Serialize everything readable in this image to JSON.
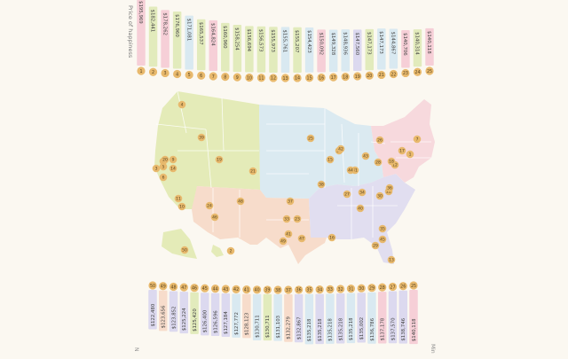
{
  "chart_data": {
    "type": "infographic-map",
    "top_axis_label": "Price of happiness",
    "bottom_axis_label_left": "N",
    "bottom_axis_label_right": "Min",
    "region_colors": {
      "west": "#e4ebb8",
      "southwest": "#f7dccb",
      "midwest": "#dbeaf1",
      "south": "#e1def0",
      "northeast": "#f7d9dd"
    },
    "badge_color": "#e8b96d",
    "top_series": [
      {
        "rank": 1,
        "price": "$195,969",
        "color": "#f6cfd7"
      },
      {
        "rank": 2,
        "price": "$182,441",
        "color": "#e2ebbc"
      },
      {
        "rank": 3,
        "price": "$178,262",
        "color": "#f6cfd7"
      },
      {
        "rank": 4,
        "price": "$176,960",
        "color": "#e2ebbc"
      },
      {
        "rank": 5,
        "price": "$171,081",
        "color": "#d9e9f1"
      },
      {
        "rank": 6,
        "price": "$165,537",
        "color": "#e2ebbc"
      },
      {
        "rank": 7,
        "price": "$164,824",
        "color": "#f6cfd7"
      },
      {
        "rank": 8,
        "price": "$160,960",
        "color": "#e2ebbc"
      },
      {
        "rank": 9,
        "price": "$158,254",
        "color": "#e2ebbc"
      },
      {
        "rank": 10,
        "price": "$156,694",
        "color": "#e2ebbc"
      },
      {
        "rank": 11,
        "price": "$156,573",
        "color": "#e2ebbc"
      },
      {
        "rank": 12,
        "price": "$155,973",
        "color": "#e2ebbc"
      },
      {
        "rank": 13,
        "price": "$155,761",
        "color": "#d9e9f1"
      },
      {
        "rank": 14,
        "price": "$155,207",
        "color": "#e2ebbc"
      },
      {
        "rank": 15,
        "price": "$154,423",
        "color": "#d9e9f1"
      },
      {
        "rank": 16,
        "price": "$150,092",
        "color": "#f6cfd7"
      },
      {
        "rank": 17,
        "price": "$149,328",
        "color": "#d9e9f1"
      },
      {
        "rank": 18,
        "price": "$148,936",
        "color": "#d9e9f1"
      },
      {
        "rank": 19,
        "price": "$147,560",
        "color": "#dcd9ef"
      },
      {
        "rank": 20,
        "price": "$147,173",
        "color": "#e2ebbc"
      },
      {
        "rank": 21,
        "price": "$147,173",
        "color": "#d9e9f1"
      },
      {
        "rank": 22,
        "price": "$144,867",
        "color": "#d9e9f1"
      },
      {
        "rank": 23,
        "price": "$140,706",
        "color": "#f6cfd7"
      },
      {
        "rank": 24,
        "price": "$140,314",
        "color": "#e2ebbc"
      },
      {
        "rank": 25,
        "price": "$140,118",
        "color": "#f6cfd7"
      }
    ],
    "bottom_series": [
      {
        "rank": 50,
        "price": "$122,480",
        "color": "#dcd9ef"
      },
      {
        "rank": 49,
        "price": "$123,656",
        "color": "#f7dccb"
      },
      {
        "rank": 48,
        "price": "$123,852",
        "color": "#dcd9ef"
      },
      {
        "rank": 47,
        "price": "$125,224",
        "color": "#dcd9ef"
      },
      {
        "rank": 46,
        "price": "$125,420",
        "color": "#e2ebbc"
      },
      {
        "rank": 45,
        "price": "$126,400",
        "color": "#dcd9ef"
      },
      {
        "rank": 44,
        "price": "$126,596",
        "color": "#dcd9ef"
      },
      {
        "rank": 43,
        "price": "$127,184",
        "color": "#dcd9ef"
      },
      {
        "rank": 42,
        "price": "$127,772",
        "color": "#d9e9f1"
      },
      {
        "rank": 41,
        "price": "$128,123",
        "color": "#f7dccb"
      },
      {
        "rank": 40,
        "price": "$130,711",
        "color": "#d9e9f1"
      },
      {
        "rank": 39,
        "price": "$130,711",
        "color": "#e2ebbc"
      },
      {
        "rank": 38,
        "price": "$131,103",
        "color": "#d9e9f1"
      },
      {
        "rank": 37,
        "price": "$132,279",
        "color": "#f7dccb"
      },
      {
        "rank": 36,
        "price": "$132,867",
        "color": "#dcd9ef"
      },
      {
        "rank": 35,
        "price": "$135,218",
        "color": "#d9e9f1"
      },
      {
        "rank": 34,
        "price": "$135,218",
        "color": "#dcd9ef"
      },
      {
        "rank": 33,
        "price": "$135,218",
        "color": "#d9e9f1"
      },
      {
        "rank": 32,
        "price": "$135,218",
        "color": "#dcd9ef"
      },
      {
        "rank": 31,
        "price": "$135,218",
        "color": "#d9e9f1"
      },
      {
        "rank": 30,
        "price": "$135,002",
        "color": "#dcd9ef"
      },
      {
        "rank": 29,
        "price": "$136,786",
        "color": "#d9e9f1"
      },
      {
        "rank": 28,
        "price": "$137,178",
        "color": "#f6cfd7"
      },
      {
        "rank": 27,
        "price": "$137,570",
        "color": "#dcd9ef"
      },
      {
        "rank": 26,
        "price": "$138,746",
        "color": "#dcd9ef"
      },
      {
        "rank": 25,
        "price": "$140,118",
        "color": "#f6cfd7"
      }
    ],
    "map_markers": [
      {
        "rank": 1,
        "state": "MA"
      },
      {
        "rank": 2,
        "state": "HI"
      },
      {
        "rank": 3,
        "state": "CA"
      },
      {
        "rank": 4,
        "state": "WA"
      },
      {
        "rank": 5,
        "state": "CA"
      },
      {
        "rank": 6,
        "state": "CA"
      },
      {
        "rank": 7,
        "state": "MA"
      },
      {
        "rank": 8,
        "state": "CA"
      },
      {
        "rank": 9,
        "state": "CA"
      },
      {
        "rank": 10,
        "state": "CA"
      },
      {
        "rank": 11,
        "state": "CA"
      },
      {
        "rank": 12,
        "state": "DC"
      },
      {
        "rank": 13,
        "state": "FL"
      },
      {
        "rank": 14,
        "state": "CA"
      },
      {
        "rank": 15,
        "state": "MN"
      },
      {
        "rank": 16,
        "state": "LA"
      },
      {
        "rank": 17,
        "state": "NY"
      },
      {
        "rank": 18,
        "state": "NJ"
      },
      {
        "rank": 19,
        "state": "NV"
      },
      {
        "rank": 20,
        "state": "CA"
      },
      {
        "rank": 21,
        "state": "CO"
      },
      {
        "rank": 22,
        "state": "VA"
      },
      {
        "rank": 23,
        "state": "TX"
      },
      {
        "rank": 24,
        "state": "AZ"
      },
      {
        "rank": 25,
        "state": "MN"
      },
      {
        "rank": 26,
        "state": "NC"
      },
      {
        "rank": 27,
        "state": "AR"
      },
      {
        "rank": 28,
        "state": "WV"
      },
      {
        "rank": 29,
        "state": "FL"
      },
      {
        "rank": 30,
        "state": "GA"
      },
      {
        "rank": 31,
        "state": "NY"
      },
      {
        "rank": 32,
        "state": "WI"
      },
      {
        "rank": 33,
        "state": "TN"
      },
      {
        "rank": 34,
        "state": "KY"
      },
      {
        "rank": 35,
        "state": "FL"
      },
      {
        "rank": 36,
        "state": "IL"
      },
      {
        "rank": 37,
        "state": "TX"
      },
      {
        "rank": 38,
        "state": "MO"
      },
      {
        "rank": 39,
        "state": "ID"
      },
      {
        "rank": 40,
        "state": "TN"
      },
      {
        "rank": 41,
        "state": "TX"
      },
      {
        "rank": 42,
        "state": "MI"
      },
      {
        "rank": 43,
        "state": "OH"
      },
      {
        "rank": 44,
        "state": "OH"
      },
      {
        "rank": 45,
        "state": "FL"
      },
      {
        "rank": 46,
        "state": "AZ"
      },
      {
        "rank": 47,
        "state": "TX"
      },
      {
        "rank": 48,
        "state": "NM"
      },
      {
        "rank": 49,
        "state": "TX"
      },
      {
        "rank": 50,
        "state": "AK"
      }
    ]
  }
}
